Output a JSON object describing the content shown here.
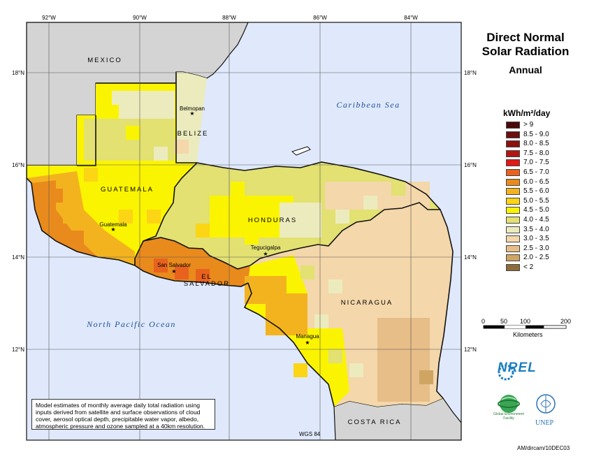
{
  "title_line1": "Direct Normal",
  "title_line2": "Solar Radiation",
  "subtitle": "Annual",
  "legend": {
    "title": "kWh/m²/day",
    "items": [
      {
        "label": "> 9",
        "color": "#4a0a0a"
      },
      {
        "label": "8.5 - 9.0",
        "color": "#6b0f0f"
      },
      {
        "label": "8.0 - 8.5",
        "color": "#8e1010"
      },
      {
        "label": "7.5 - 8.0",
        "color": "#b31515"
      },
      {
        "label": "7.0 - 7.5",
        "color": "#e01818"
      },
      {
        "label": "6.5 - 7.0",
        "color": "#e8621e"
      },
      {
        "label": "6.0 - 6.5",
        "color": "#e98a1c"
      },
      {
        "label": "5.5 - 6.0",
        "color": "#f3b31f"
      },
      {
        "label": "5.0 - 5.5",
        "color": "#fcd514"
      },
      {
        "label": "4.5 - 5.0",
        "color": "#fbf400"
      },
      {
        "label": "4.0 - 4.5",
        "color": "#e2e172"
      },
      {
        "label": "3.5 - 4.0",
        "color": "#ecebbe"
      },
      {
        "label": "3.0 - 3.5",
        "color": "#f4d7aa"
      },
      {
        "label": "2.5 - 3.0",
        "color": "#e7bd88"
      },
      {
        "label": "2.0 - 2.5",
        "color": "#d0a462"
      },
      {
        "label": "< 2",
        "color": "#8f6b3b"
      }
    ]
  },
  "scale": {
    "ticks": [
      "0",
      "50",
      "100",
      "200"
    ],
    "unit_label": "Kilometers"
  },
  "longitudes": [
    "92°W",
    "90°W",
    "88°W",
    "86°W",
    "84°W"
  ],
  "latitudes": [
    "18°N",
    "16°N",
    "14°N",
    "12°N"
  ],
  "countries": [
    "MEXICO",
    "BELIZE",
    "GUATEMALA",
    "HONDURAS",
    "EL",
    "SALVADOR",
    "NICARAGUA",
    "COSTA RICA"
  ],
  "capitals": [
    "Belmopan",
    "Guatemala",
    "San Salvador",
    "Tegucigalpa",
    "Managua"
  ],
  "water": [
    "Caribbean Sea",
    "North Pacific Ocean"
  ],
  "note": "Model estimates of monthly average daily total radiation using inputs derived from satellite and surface observations of cloud cover, aerosol optical depth, precipitable water vapor, albedo, atmospheric pressure and ozone sampled at a 40km resolution.",
  "datum": "WGS 84",
  "credit": "AM/dircam/10DEC03",
  "logos": {
    "nrel": "NREL",
    "gef": "Global Environment Facility",
    "unep": "UNEP"
  },
  "colors": {
    "sea": "#dfe9fb",
    "foreign_land": "#d4d4d4",
    "border": "#111111",
    "grid": "#555555"
  }
}
